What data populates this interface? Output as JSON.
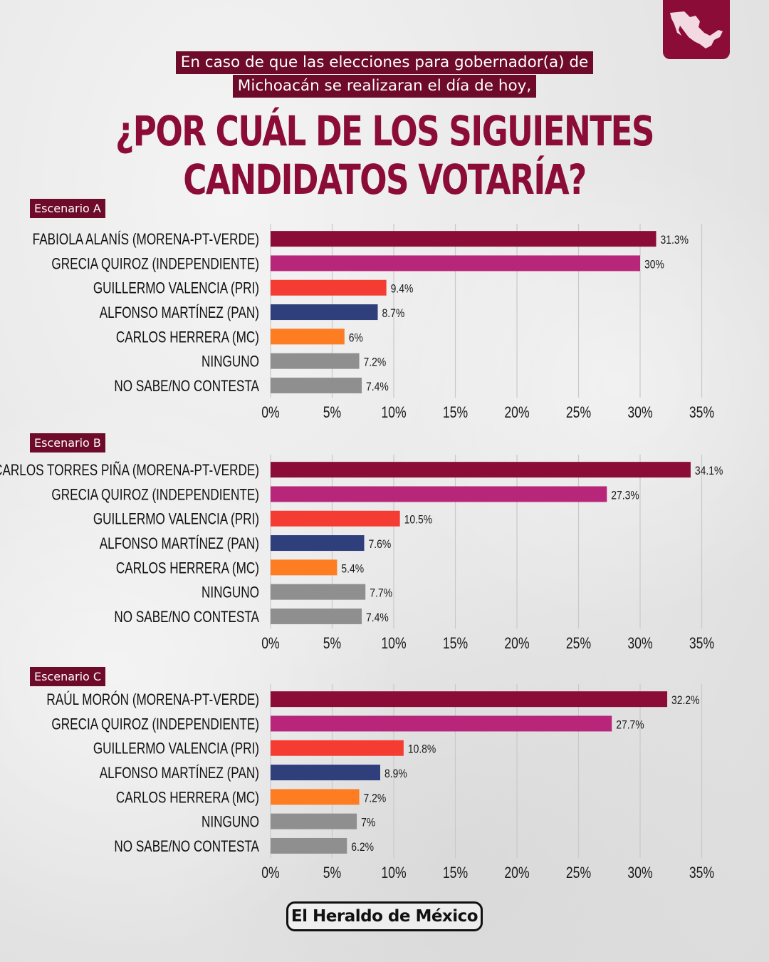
{
  "intro": {
    "line1": "En caso de que las elecciones para gobernador(a) de",
    "line2": "Michoacán se realizaran el día de hoy,"
  },
  "headline": {
    "line1": "¿POR CUÁL DE LOS SIGUIENTES",
    "line2": "CANDIDATOS VOTARÍA?"
  },
  "brand": {
    "logo_text": "El Heraldo de México",
    "badge_icon": "mexico-map-icon"
  },
  "colors": {
    "morena": "#8b0c36",
    "independiente": "#b8267a",
    "pri": "#f53c32",
    "pan": "#2e3f7c",
    "mc": "#ff7d22",
    "other": "#8f8f8f"
  },
  "chart_data": [
    {
      "type": "bar",
      "title": "Escenario A",
      "categories": [
        "FABIOLA ALANÍS (MORENA-PT-VERDE)",
        "GRECIA QUIROZ (INDEPENDIENTE)",
        "GUILLERMO VALENCIA (PRI)",
        "ALFONSO MARTÍNEZ (PAN)",
        "CARLOS HERRERA (MC)",
        "NINGUNO",
        "NO SABE/NO CONTESTA"
      ],
      "values": [
        31.3,
        30,
        9.4,
        8.7,
        6,
        7.2,
        7.4
      ],
      "value_labels": [
        "31.3%",
        "30%",
        "9.4%",
        "8.7%",
        "6%",
        "7.2%",
        "7.4%"
      ],
      "bar_colors": [
        "#8b0c36",
        "#b8267a",
        "#f53c32",
        "#2e3f7c",
        "#ff7d22",
        "#8f8f8f",
        "#8f8f8f"
      ],
      "xlim": [
        0,
        35
      ],
      "xticks": [
        "0%",
        "5%",
        "10%",
        "15%",
        "20%",
        "25%",
        "30%",
        "35%"
      ],
      "grid": true
    },
    {
      "type": "bar",
      "title": "Escenario B",
      "categories": [
        "CARLOS TORRES PIÑA (MORENA-PT-VERDE)",
        "GRECIA QUIROZ (INDEPENDIENTE)",
        "GUILLERMO VALENCIA (PRI)",
        "ALFONSO MARTÍNEZ (PAN)",
        "CARLOS HERRERA (MC)",
        "NINGUNO",
        "NO SABE/NO CONTESTA"
      ],
      "values": [
        34.1,
        27.3,
        10.5,
        7.6,
        5.4,
        7.7,
        7.4
      ],
      "value_labels": [
        "34.1%",
        "27.3%",
        "10.5%",
        "7.6%",
        "5.4%",
        "7.7%",
        "7.4%"
      ],
      "bar_colors": [
        "#8b0c36",
        "#b8267a",
        "#f53c32",
        "#2e3f7c",
        "#ff7d22",
        "#8f8f8f",
        "#8f8f8f"
      ],
      "xlim": [
        0,
        35
      ],
      "xticks": [
        "0%",
        "5%",
        "10%",
        "15%",
        "20%",
        "25%",
        "30%",
        "35%"
      ],
      "grid": true
    },
    {
      "type": "bar",
      "title": "Escenario C",
      "categories": [
        "RAÚL MORÓN (MORENA-PT-VERDE)",
        "GRECIA QUIROZ (INDEPENDIENTE)",
        "GUILLERMO VALENCIA (PRI)",
        "ALFONSO MARTÍNEZ (PAN)",
        "CARLOS HERRERA (MC)",
        "NINGUNO",
        "NO SABE/NO CONTESTA"
      ],
      "values": [
        32.2,
        27.7,
        10.8,
        8.9,
        7.2,
        7,
        6.2
      ],
      "value_labels": [
        "32.2%",
        "27.7%",
        "10.8%",
        "8.9%",
        "7.2%",
        "7%",
        "6.2%"
      ],
      "bar_colors": [
        "#8b0c36",
        "#b8267a",
        "#f53c32",
        "#2e3f7c",
        "#ff7d22",
        "#8f8f8f",
        "#8f8f8f"
      ],
      "xlim": [
        0,
        35
      ],
      "xticks": [
        "0%",
        "5%",
        "10%",
        "15%",
        "20%",
        "25%",
        "30%",
        "35%"
      ],
      "grid": true
    }
  ]
}
